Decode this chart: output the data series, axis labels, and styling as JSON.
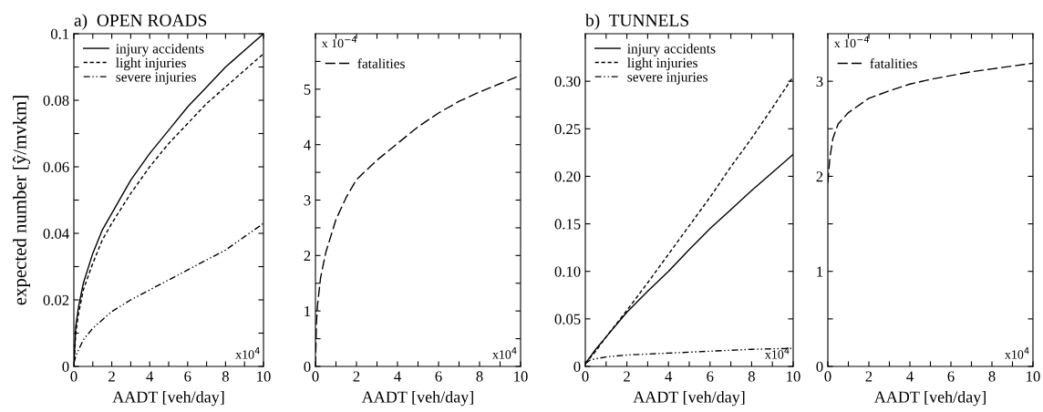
{
  "chart_data": [
    {
      "type": "line",
      "title": "a)  OPEN ROADS",
      "xlabel": "AADT [veh/day]",
      "ylabel": "expected number [ŷ/mvkm]",
      "xlim": [
        0,
        10
      ],
      "xticks": [
        0,
        {
          "value": 1,
          "label": null
        },
        2,
        {
          "value": 3,
          "label": null
        },
        4,
        {
          "value": 5,
          "label": null
        },
        6,
        {
          "value": 7,
          "label": null
        },
        8,
        {
          "value": 9,
          "label": null
        },
        10
      ],
      "ylim": [
        0,
        0.1
      ],
      "yticks": [
        0,
        {
          "value": 0.01,
          "label": null
        },
        0.02,
        {
          "value": 0.03,
          "label": null
        },
        0.04,
        {
          "value": 0.05,
          "label": null
        },
        0.06,
        {
          "value": 0.07,
          "label": null
        },
        0.08,
        {
          "value": 0.09,
          "label": null
        },
        0.1
      ],
      "legend": "top left",
      "grid": false,
      "marker": "none",
      "annotations": [
        "x10$^{4}$"
      ],
      "series": [
        {
          "name": "injury accidents",
          "color": "#000000",
          "line_style": "solid",
          "x": [
            0,
            0.1,
            0.25,
            0.5,
            1,
            1.5,
            2,
            3,
            4,
            5,
            6,
            7,
            8,
            9,
            10
          ],
          "values": [
            0,
            0.012,
            0.018,
            0.025,
            0.034,
            0.041,
            0.046,
            0.056,
            0.064,
            0.071,
            0.078,
            0.084,
            0.09,
            0.095,
            0.1
          ]
        },
        {
          "name": "light injuries",
          "color": "#000000",
          "line_style": "dashed",
          "x": [
            0,
            0.1,
            0.25,
            0.5,
            1,
            1.5,
            2,
            3,
            4,
            5,
            6,
            7,
            8,
            9,
            10
          ],
          "values": [
            0,
            0.01,
            0.016,
            0.023,
            0.031,
            0.038,
            0.043,
            0.052,
            0.06,
            0.067,
            0.073,
            0.079,
            0.084,
            0.089,
            0.094
          ]
        },
        {
          "name": "severe injuries",
          "color": "#000000",
          "line_style": "dashdot",
          "x": [
            0,
            0.1,
            0.25,
            0.5,
            1,
            1.5,
            2,
            3,
            4,
            5,
            6,
            7,
            8,
            9,
            10
          ],
          "values": [
            0.001,
            0.003,
            0.005,
            0.008,
            0.0115,
            0.014,
            0.0165,
            0.02,
            0.023,
            0.026,
            0.029,
            0.032,
            0.035,
            0.039,
            0.043
          ]
        }
      ]
    },
    {
      "type": "line",
      "xlabel": "AADT [veh/day]",
      "xlim": [
        0,
        10
      ],
      "xticks": [
        0,
        {
          "value": 1,
          "label": null
        },
        2,
        {
          "value": 3,
          "label": null
        },
        4,
        {
          "value": 5,
          "label": null
        },
        6,
        {
          "value": 7,
          "label": null
        },
        8,
        {
          "value": 9,
          "label": null
        },
        10
      ],
      "ylim": [
        0,
        6
      ],
      "yticks": [
        0,
        {
          "value": 0.5,
          "label": null
        },
        1,
        {
          "value": 1.5,
          "label": null
        },
        2,
        {
          "value": 2.5,
          "label": null
        },
        3,
        {
          "value": 3.5,
          "label": null
        },
        4,
        {
          "value": 4.5,
          "label": null
        },
        5,
        {
          "value": 5.5,
          "label": null
        }
      ],
      "legend": "top left",
      "grid": false,
      "marker": "none",
      "annotations": [
        "x 10$^{−4}$",
        "x10$^{4}$"
      ],
      "series": [
        {
          "name": "fatalities",
          "color": "#000000",
          "line_style": "longdash",
          "x": [
            0,
            0.05,
            0.1,
            0.25,
            0.5,
            1,
            1.5,
            2,
            3,
            4,
            5,
            6,
            7,
            8,
            9,
            10
          ],
          "values": [
            0,
            0.8,
            1.1,
            1.6,
            2.05,
            2.65,
            3.05,
            3.37,
            3.72,
            4.02,
            4.32,
            4.57,
            4.78,
            4.95,
            5.1,
            5.25
          ]
        }
      ]
    },
    {
      "type": "line",
      "title": "b)  TUNNELS",
      "xlabel": "AADT [veh/day]",
      "xlim": [
        0,
        10
      ],
      "xticks": [
        0,
        {
          "value": 1,
          "label": null
        },
        2,
        {
          "value": 3,
          "label": null
        },
        4,
        {
          "value": 5,
          "label": null
        },
        6,
        {
          "value": 7,
          "label": null
        },
        8,
        {
          "value": 9,
          "label": null
        },
        10
      ],
      "ylim": [
        0,
        0.35
      ],
      "yticks": [
        0,
        {
          "value": 0.05,
          "label": "0.05"
        },
        {
          "value": 0.1,
          "label": "0.10"
        },
        {
          "value": 0.15,
          "label": "0.15"
        },
        {
          "value": 0.2,
          "label": "0.20"
        },
        {
          "value": 0.25,
          "label": "0.25"
        },
        {
          "value": 0.3,
          "label": "0.30"
        }
      ],
      "legend": "top left",
      "grid": false,
      "marker": "none",
      "annotations": [
        "x10$^{4}$"
      ],
      "series": [
        {
          "name": "injury accidents",
          "color": "#000000",
          "line_style": "solid",
          "x": [
            0,
            0.5,
            1,
            2,
            3,
            4,
            5,
            6,
            7,
            8,
            9,
            10
          ],
          "values": [
            0.003,
            0.018,
            0.031,
            0.057,
            0.079,
            0.1,
            0.123,
            0.145,
            0.165,
            0.185,
            0.204,
            0.223
          ]
        },
        {
          "name": "light injuries",
          "color": "#000000",
          "line_style": "dashed",
          "x": [
            0,
            0.5,
            1,
            2,
            3,
            4,
            5,
            6,
            7,
            8,
            9,
            10
          ],
          "values": [
            0.003,
            0.016,
            0.031,
            0.059,
            0.088,
            0.118,
            0.148,
            0.178,
            0.21,
            0.24,
            0.272,
            0.305
          ]
        },
        {
          "name": "severe injuries",
          "color": "#000000",
          "line_style": "dashdot",
          "x": [
            0,
            0.25,
            0.5,
            1,
            2,
            4,
            6,
            8,
            10
          ],
          "values": [
            0.003,
            0.007,
            0.008,
            0.01,
            0.012,
            0.014,
            0.016,
            0.018,
            0.019
          ]
        }
      ]
    },
    {
      "type": "line",
      "xlabel": "AADT [veh/day]",
      "xlim": [
        0,
        10
      ],
      "xticks": [
        0,
        {
          "value": 1,
          "label": null
        },
        2,
        {
          "value": 3,
          "label": null
        },
        4,
        {
          "value": 5,
          "label": null
        },
        6,
        {
          "value": 7,
          "label": null
        },
        8,
        {
          "value": 9,
          "label": null
        },
        10
      ],
      "ylim": [
        0,
        3.5
      ],
      "yticks": [
        0,
        {
          "value": 0.5,
          "label": null
        },
        1,
        {
          "value": 1.5,
          "label": null
        },
        2,
        {
          "value": 2.5,
          "label": null
        },
        3
      ],
      "legend": "top left",
      "grid": false,
      "marker": "none",
      "annotations": [
        "x 10$^{−4}$",
        "x10$^{4}$"
      ],
      "series": [
        {
          "name": "fatalities",
          "color": "#000000",
          "line_style": "longdash",
          "x": [
            0,
            0.1,
            0.25,
            0.5,
            1,
            2,
            3,
            4,
            5,
            6,
            7,
            8,
            9,
            10
          ],
          "values": [
            1.93,
            2.2,
            2.4,
            2.55,
            2.67,
            2.82,
            2.9,
            2.97,
            3.02,
            3.06,
            3.1,
            3.13,
            3.16,
            3.19
          ]
        }
      ]
    }
  ]
}
